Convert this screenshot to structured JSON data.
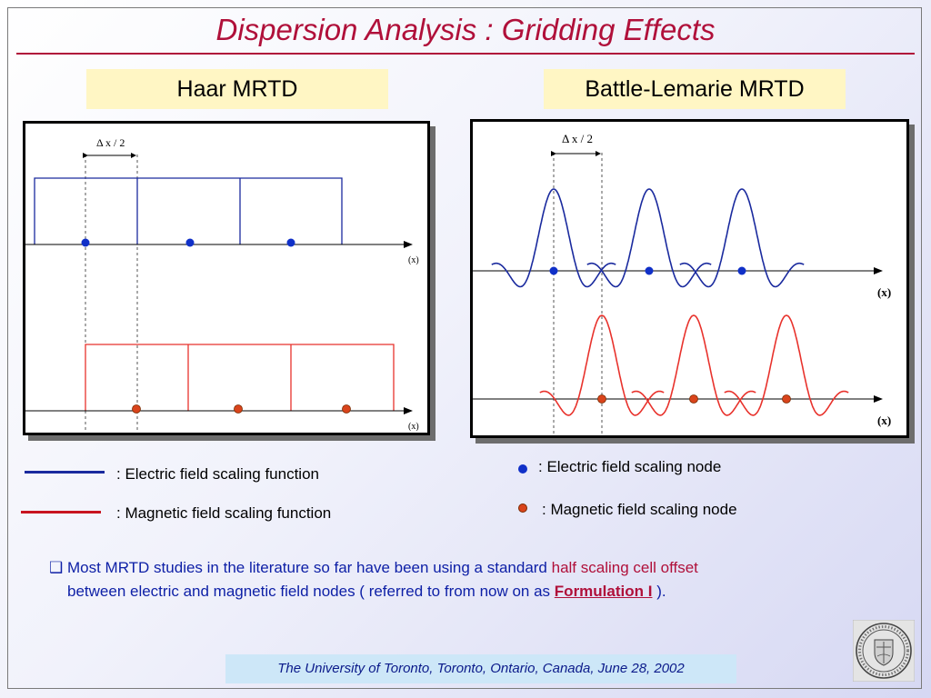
{
  "title": "Dispersion Analysis : Gridding Effects",
  "left_label": "Haar MRTD",
  "right_label": "Battle-Lemarie MRTD",
  "haar_plot": {
    "delta_label": "Δ x / 2",
    "axis_label_top": "(x)",
    "axis_label_bottom": "(x)"
  },
  "bl_plot": {
    "delta_label": "Δ x /  2",
    "axis_label_top": "(x)",
    "axis_label_bottom": "(x)"
  },
  "legend": {
    "electric_function": ":  Electric field scaling function",
    "magnetic_function": ":  Magnetic field scaling function",
    "electric_node": ":  Electric field scaling node",
    "magnetic_node": ":  Magnetic field scaling node"
  },
  "note": {
    "bullet": "❑",
    "part1": "Most MRTD studies in the literature   so far have been using a standard ",
    "highlight": "half scaling cell offset",
    "part2": "between electric and magnetic field nodes ( referred to from now on as ",
    "formulation": "Formulation I",
    "part3": " )."
  },
  "footer": "The University of Toronto, Toronto, Ontario, Canada, June 28, 2002",
  "logo_icon": "university-seal-icon",
  "colors": {
    "title": "#b0103a",
    "electric": "#1a2a9e",
    "magnetic": "#e8322c",
    "electric_node": "#1030c8",
    "magnetic_node": "#d9441c",
    "note": "#0d1fa6"
  }
}
